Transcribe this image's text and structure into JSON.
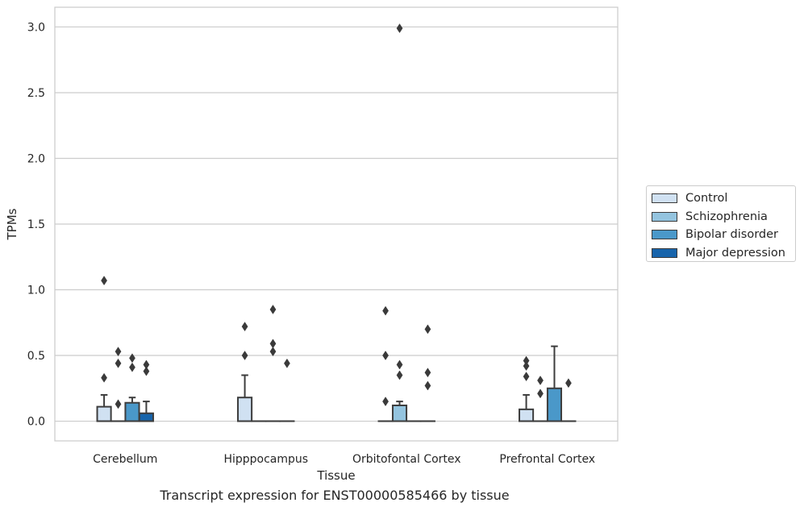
{
  "chart_data": {
    "type": "box",
    "xlabel": "Tissue",
    "ylabel": "TPMs",
    "caption": "Transcript expression for ENST00000585466 by tissue",
    "ylim": [
      -0.15,
      3.15
    ],
    "yticks": [
      0.0,
      0.5,
      1.0,
      1.5,
      2.0,
      2.5,
      3.0
    ],
    "ytick_labels": [
      "0.0",
      "0.5",
      "1.0",
      "1.5",
      "2.0",
      "2.5",
      "3.0"
    ],
    "grid": "horizontal",
    "legend_position": "right",
    "categories": [
      "Cerebellum",
      "Hipppocampus",
      "Orbitofontal Cortex",
      "Prefrontal Cortex"
    ],
    "series": [
      {
        "name": "Control",
        "color": "#d0e1f2",
        "boxes": [
          {
            "q1": 0.0,
            "median": 0.0,
            "q3": 0.11,
            "whisker_low": 0.0,
            "whisker_high": 0.2,
            "outliers": [
              1.07,
              0.33
            ]
          },
          {
            "q1": 0.0,
            "median": 0.0,
            "q3": 0.18,
            "whisker_low": 0.0,
            "whisker_high": 0.35,
            "outliers": [
              0.72,
              0.5
            ]
          },
          {
            "q1": 0.0,
            "median": 0.0,
            "q3": 0.0,
            "whisker_low": 0.0,
            "whisker_high": 0.0,
            "outliers": [
              0.84,
              0.5,
              0.15
            ]
          },
          {
            "q1": 0.0,
            "median": 0.0,
            "q3": 0.09,
            "whisker_low": 0.0,
            "whisker_high": 0.2,
            "outliers": [
              0.46,
              0.42,
              0.34
            ]
          }
        ]
      },
      {
        "name": "Schizophrenia",
        "color": "#94c4df",
        "boxes": [
          {
            "q1": 0.0,
            "median": 0.0,
            "q3": 0.0,
            "whisker_low": 0.0,
            "whisker_high": 0.0,
            "outliers": [
              0.53,
              0.44,
              0.13
            ]
          },
          {
            "q1": 0.0,
            "median": 0.0,
            "q3": 0.0,
            "whisker_low": 0.0,
            "whisker_high": 0.0,
            "outliers": []
          },
          {
            "q1": 0.0,
            "median": 0.0,
            "q3": 0.12,
            "whisker_low": 0.0,
            "whisker_high": 0.15,
            "outliers": [
              2.99,
              0.43,
              0.35
            ]
          },
          {
            "q1": 0.0,
            "median": 0.0,
            "q3": 0.0,
            "whisker_low": 0.0,
            "whisker_high": 0.0,
            "outliers": [
              0.31,
              0.21
            ]
          }
        ]
      },
      {
        "name": "Bipolar disorder",
        "color": "#4a98c9",
        "boxes": [
          {
            "q1": 0.0,
            "median": 0.0,
            "q3": 0.14,
            "whisker_low": 0.0,
            "whisker_high": 0.18,
            "outliers": [
              0.48,
              0.41
            ]
          },
          {
            "q1": 0.0,
            "median": 0.0,
            "q3": 0.0,
            "whisker_low": 0.0,
            "whisker_high": 0.0,
            "outliers": [
              0.85,
              0.59,
              0.53
            ]
          },
          {
            "q1": 0.0,
            "median": 0.0,
            "q3": 0.0,
            "whisker_low": 0.0,
            "whisker_high": 0.0,
            "outliers": []
          },
          {
            "q1": 0.0,
            "median": 0.0,
            "q3": 0.25,
            "whisker_low": 0.0,
            "whisker_high": 0.57,
            "outliers": []
          }
        ]
      },
      {
        "name": "Major depression",
        "color": "#1764ab",
        "boxes": [
          {
            "q1": 0.0,
            "median": 0.0,
            "q3": 0.06,
            "whisker_low": 0.0,
            "whisker_high": 0.15,
            "outliers": [
              0.43,
              0.38
            ]
          },
          {
            "q1": 0.0,
            "median": 0.0,
            "q3": 0.0,
            "whisker_low": 0.0,
            "whisker_high": 0.0,
            "outliers": [
              0.44
            ]
          },
          {
            "q1": 0.0,
            "median": 0.0,
            "q3": 0.0,
            "whisker_low": 0.0,
            "whisker_high": 0.0,
            "outliers": [
              0.7,
              0.37,
              0.27
            ]
          },
          {
            "q1": 0.0,
            "median": 0.0,
            "q3": 0.0,
            "whisker_low": 0.0,
            "whisker_high": 0.0,
            "outliers": [
              0.29
            ]
          }
        ]
      }
    ]
  }
}
